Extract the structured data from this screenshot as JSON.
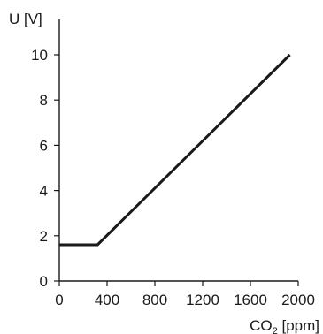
{
  "chart_data": {
    "type": "line",
    "ylabel": "U [V]",
    "xlabel": {
      "main": "CO",
      "subscript": "2",
      "unit": " [ppm]"
    },
    "xlim": [
      0,
      2000
    ],
    "ylim": [
      0,
      10
    ],
    "xticks": [
      0,
      400,
      800,
      1200,
      1600,
      2000
    ],
    "yticks": [
      0,
      2,
      4,
      6,
      8,
      10
    ],
    "grid": false,
    "series": [
      {
        "x": [
          0,
          320,
          1930
        ],
        "y": [
          1.6,
          1.6,
          10
        ]
      }
    ]
  }
}
